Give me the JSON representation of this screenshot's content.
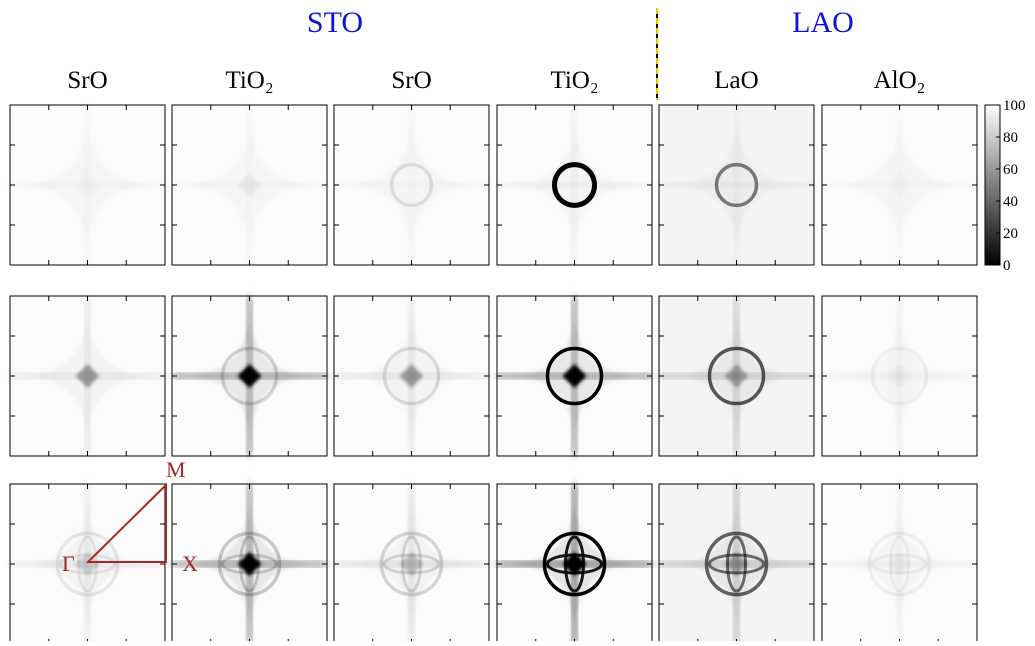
{
  "chart_data": {
    "type": "heatmap",
    "groups": [
      "STO",
      "LAO"
    ],
    "columns": [
      "SrO",
      "TiO₂",
      "SrO",
      "TiO₂",
      "LaO",
      "AlO₂"
    ],
    "annotations": [
      "Γ",
      "X",
      "M"
    ],
    "colorbar": {
      "clim": [
        0,
        100
      ],
      "ticks": [
        0,
        20,
        40,
        60,
        80,
        100
      ]
    }
  }
}
